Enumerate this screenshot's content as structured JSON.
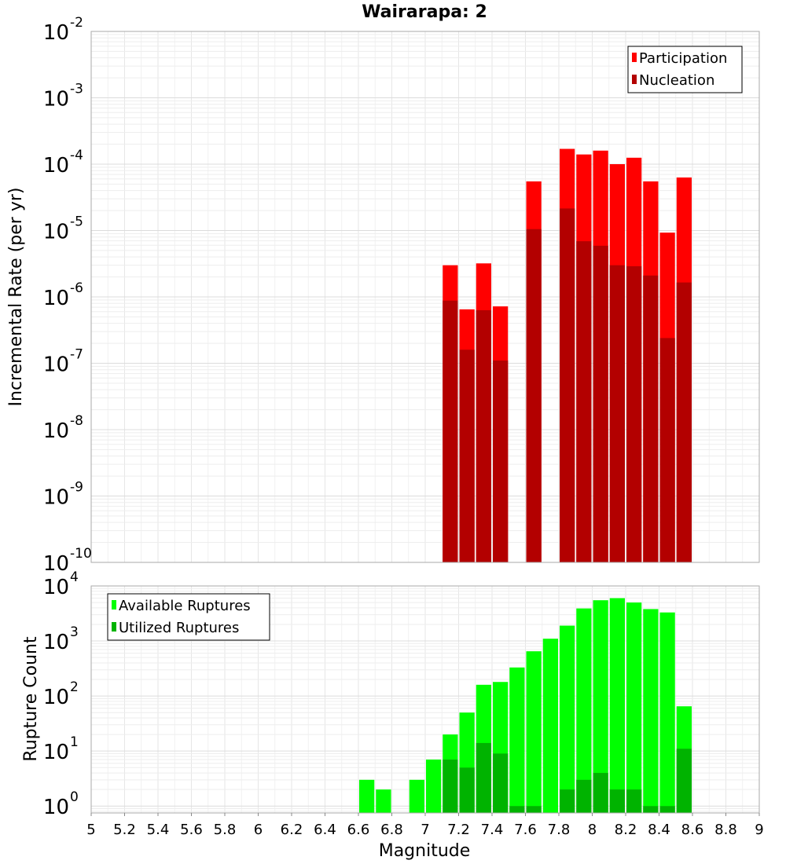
{
  "chart_data": [
    {
      "type": "bar",
      "title": "Wairarapa: 2",
      "xlabel": "",
      "ylabel": "Incremental Rate (per yr)",
      "xlim": [
        5,
        9
      ],
      "ylim": [
        1e-10,
        0.01
      ],
      "y_scale": "log",
      "y_ticks": [
        {
          "base": "10",
          "exp": "-10"
        },
        {
          "base": "10",
          "exp": "-9"
        },
        {
          "base": "10",
          "exp": "-8"
        },
        {
          "base": "10",
          "exp": "-7"
        },
        {
          "base": "10",
          "exp": "-6"
        },
        {
          "base": "10",
          "exp": "-5"
        },
        {
          "base": "10",
          "exp": "-4"
        },
        {
          "base": "10",
          "exp": "-3"
        },
        {
          "base": "10",
          "exp": "-2"
        }
      ],
      "grid": true,
      "legend_position": "top-right",
      "bar_width": 0.1,
      "x": [
        7.15,
        7.25,
        7.35,
        7.45,
        7.65,
        7.85,
        7.95,
        8.05,
        8.15,
        8.25,
        8.35,
        8.45,
        8.55
      ],
      "series": [
        {
          "name": "Participation",
          "color": "#ff0000",
          "values": [
            3e-06,
            6.5e-07,
            3.2e-06,
            7.2e-07,
            5.5e-05,
            0.00017,
            0.00014,
            0.00016,
            0.0001,
            0.000125,
            5.5e-05,
            9.3e-06,
            6.3e-05
          ]
        },
        {
          "name": "Nucleation",
          "color": "#b30000",
          "values": [
            8.8e-07,
            1.6e-07,
            6.3e-07,
            1.1e-07,
            1.05e-05,
            2.15e-05,
            6.9e-06,
            5.9e-06,
            3e-06,
            2.9e-06,
            2.1e-06,
            2.4e-07,
            1.65e-06
          ]
        }
      ]
    },
    {
      "type": "bar",
      "title": "",
      "xlabel": "Magnitude",
      "ylabel": "Rupture Count",
      "xlim": [
        5,
        9
      ],
      "ylim": [
        0.75,
        10000
      ],
      "y_scale": "log",
      "y_ticks": [
        {
          "base": "10",
          "exp": "0"
        },
        {
          "base": "10",
          "exp": "1"
        },
        {
          "base": "10",
          "exp": "2"
        },
        {
          "base": "10",
          "exp": "3"
        },
        {
          "base": "10",
          "exp": "4"
        }
      ],
      "x_ticks": [
        "5",
        "5.2",
        "5.4",
        "5.6",
        "5.8",
        "6",
        "6.2",
        "6.4",
        "6.6",
        "6.8",
        "7",
        "7.2",
        "7.4",
        "7.6",
        "7.8",
        "8",
        "8.2",
        "8.4",
        "8.6",
        "8.8",
        "9"
      ],
      "grid": true,
      "legend_position": "top-left",
      "bar_width": 0.1,
      "x": [
        6.65,
        6.75,
        6.95,
        7.05,
        7.15,
        7.25,
        7.35,
        7.45,
        7.55,
        7.65,
        7.75,
        7.85,
        7.95,
        8.05,
        8.15,
        8.25,
        8.35,
        8.45,
        8.55
      ],
      "series": [
        {
          "name": "Available Ruptures",
          "color": "#00ff00",
          "values": [
            3,
            2,
            3,
            7,
            20,
            50,
            160,
            180,
            330,
            650,
            1100,
            1900,
            3900,
            5500,
            6000,
            5000,
            3800,
            3300,
            65
          ]
        },
        {
          "name": "Utilized Ruptures",
          "color": "#00b300",
          "values": [
            0,
            0,
            0,
            0,
            7,
            5,
            14,
            9,
            1,
            1,
            0,
            2,
            3,
            4,
            2,
            2,
            1,
            1,
            11
          ]
        }
      ]
    }
  ]
}
